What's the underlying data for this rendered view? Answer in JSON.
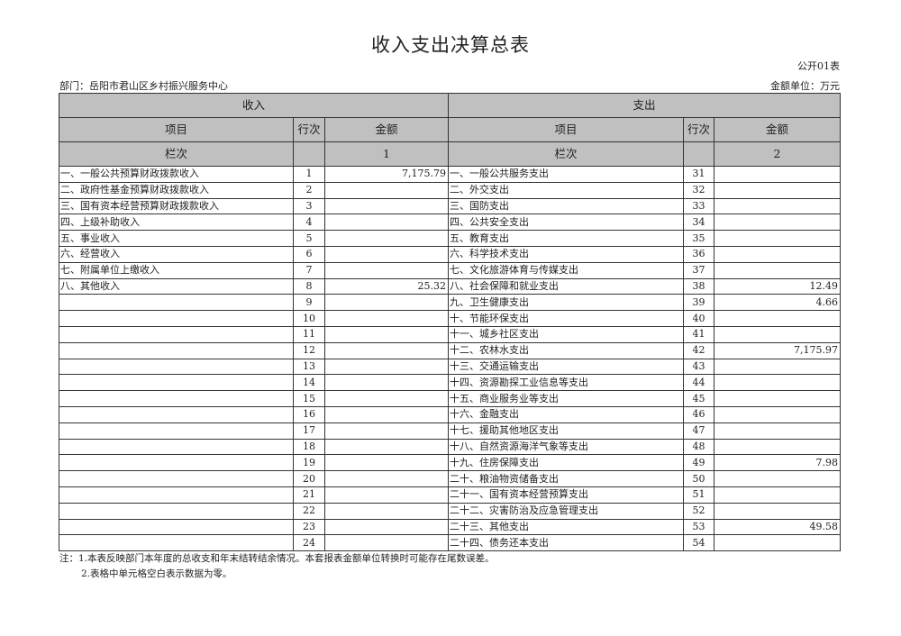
{
  "title": "收入支出决算总表",
  "form_code": "公开01表",
  "department": "部门：岳阳市君山区乡村振兴服务中心",
  "unit": "金额单位：万元",
  "headers": {
    "income": "收入",
    "expense": "支出",
    "item": "项目",
    "line_no": "行次",
    "amount": "金额",
    "column": "栏次",
    "income_col": "1",
    "expense_col": "2"
  },
  "rows": [
    {
      "in_item": "一、一般公共预算财政拨款收入",
      "in_no": "1",
      "in_amt": "7,175.79",
      "ex_item": "一、一般公共服务支出",
      "ex_no": "31",
      "ex_amt": ""
    },
    {
      "in_item": "二、政府性基金预算财政拨款收入",
      "in_no": "2",
      "in_amt": "",
      "ex_item": "二、外交支出",
      "ex_no": "32",
      "ex_amt": ""
    },
    {
      "in_item": "三、国有资本经营预算财政拨款收入",
      "in_no": "3",
      "in_amt": "",
      "ex_item": "三、国防支出",
      "ex_no": "33",
      "ex_amt": ""
    },
    {
      "in_item": "四、上级补助收入",
      "in_no": "4",
      "in_amt": "",
      "ex_item": "四、公共安全支出",
      "ex_no": "34",
      "ex_amt": ""
    },
    {
      "in_item": "五、事业收入",
      "in_no": "5",
      "in_amt": "",
      "ex_item": "五、教育支出",
      "ex_no": "35",
      "ex_amt": ""
    },
    {
      "in_item": "六、经营收入",
      "in_no": "6",
      "in_amt": "",
      "ex_item": "六、科学技术支出",
      "ex_no": "36",
      "ex_amt": ""
    },
    {
      "in_item": "七、附属单位上缴收入",
      "in_no": "7",
      "in_amt": "",
      "ex_item": "七、文化旅游体育与传媒支出",
      "ex_no": "37",
      "ex_amt": ""
    },
    {
      "in_item": "八、其他收入",
      "in_no": "8",
      "in_amt": "25.32",
      "ex_item": "八、社会保障和就业支出",
      "ex_no": "38",
      "ex_amt": "12.49"
    },
    {
      "in_item": "",
      "in_no": "9",
      "in_amt": "",
      "ex_item": "九、卫生健康支出",
      "ex_no": "39",
      "ex_amt": "4.66"
    },
    {
      "in_item": "",
      "in_no": "10",
      "in_amt": "",
      "ex_item": "十、节能环保支出",
      "ex_no": "40",
      "ex_amt": ""
    },
    {
      "in_item": "",
      "in_no": "11",
      "in_amt": "",
      "ex_item": "十一、城乡社区支出",
      "ex_no": "41",
      "ex_amt": ""
    },
    {
      "in_item": "",
      "in_no": "12",
      "in_amt": "",
      "ex_item": "十二、农林水支出",
      "ex_no": "42",
      "ex_amt": "7,175.97"
    },
    {
      "in_item": "",
      "in_no": "13",
      "in_amt": "",
      "ex_item": "十三、交通运输支出",
      "ex_no": "43",
      "ex_amt": ""
    },
    {
      "in_item": "",
      "in_no": "14",
      "in_amt": "",
      "ex_item": "十四、资源勘探工业信息等支出",
      "ex_no": "44",
      "ex_amt": ""
    },
    {
      "in_item": "",
      "in_no": "15",
      "in_amt": "",
      "ex_item": "十五、商业服务业等支出",
      "ex_no": "45",
      "ex_amt": ""
    },
    {
      "in_item": "",
      "in_no": "16",
      "in_amt": "",
      "ex_item": "十六、金融支出",
      "ex_no": "46",
      "ex_amt": ""
    },
    {
      "in_item": "",
      "in_no": "17",
      "in_amt": "",
      "ex_item": "十七、援助其他地区支出",
      "ex_no": "47",
      "ex_amt": ""
    },
    {
      "in_item": "",
      "in_no": "18",
      "in_amt": "",
      "ex_item": "十八、自然资源海洋气象等支出",
      "ex_no": "48",
      "ex_amt": ""
    },
    {
      "in_item": "",
      "in_no": "19",
      "in_amt": "",
      "ex_item": "十九、住房保障支出",
      "ex_no": "49",
      "ex_amt": "7.98"
    },
    {
      "in_item": "",
      "in_no": "20",
      "in_amt": "",
      "ex_item": "二十、粮油物资储备支出",
      "ex_no": "50",
      "ex_amt": ""
    },
    {
      "in_item": "",
      "in_no": "21",
      "in_amt": "",
      "ex_item": "二十一、国有资本经营预算支出",
      "ex_no": "51",
      "ex_amt": ""
    },
    {
      "in_item": "",
      "in_no": "22",
      "in_amt": "",
      "ex_item": "二十二、灾害防治及应急管理支出",
      "ex_no": "52",
      "ex_amt": ""
    },
    {
      "in_item": "",
      "in_no": "23",
      "in_amt": "",
      "ex_item": "二十三、其他支出",
      "ex_no": "53",
      "ex_amt": "49.58"
    },
    {
      "in_item": "",
      "in_no": "24",
      "in_amt": "",
      "ex_item": "二十四、债务还本支出",
      "ex_no": "54",
      "ex_amt": ""
    }
  ],
  "notes": [
    "注：1.本表反映部门本年度的总收支和年末结转结余情况。本套报表金额单位转换时可能存在尾数误差。",
    "2.表格中单元格空白表示数据为零。"
  ]
}
